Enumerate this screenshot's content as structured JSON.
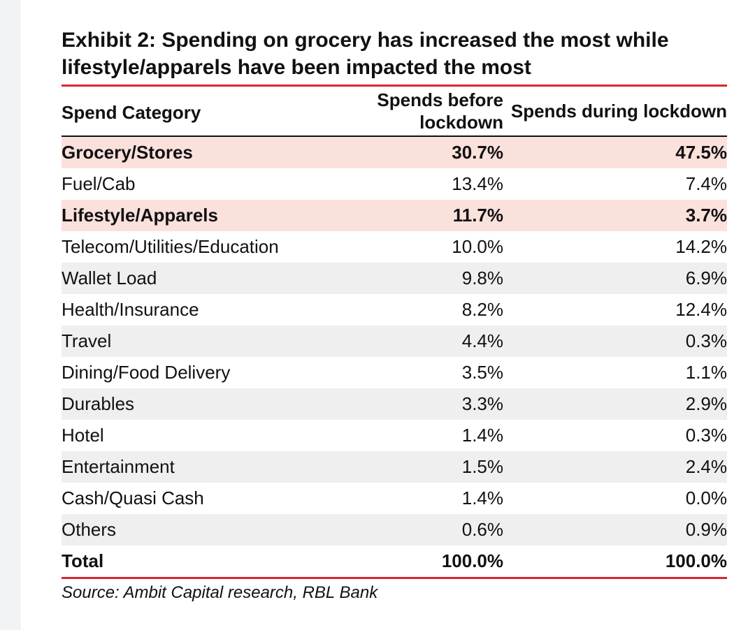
{
  "chart_data": {
    "type": "table",
    "title": "Exhibit 2: Spending on grocery has increased the most while lifestyle/apparels have been impacted the most",
    "columns": [
      "Spend Category",
      "Spends before lockdown",
      "Spends during lockdown"
    ],
    "rows": [
      {
        "category": "Grocery/Stores",
        "before": "30.7%",
        "during": "47.5%",
        "highlight": true
      },
      {
        "category": "Fuel/Cab",
        "before": "13.4%",
        "during": "7.4%",
        "highlight": false
      },
      {
        "category": "Lifestyle/Apparels",
        "before": "11.7%",
        "during": "3.7%",
        "highlight": true
      },
      {
        "category": "Telecom/Utilities/Education",
        "before": "10.0%",
        "during": "14.2%",
        "highlight": false
      },
      {
        "category": "Wallet Load",
        "before": "9.8%",
        "during": "6.9%",
        "highlight": false
      },
      {
        "category": "Health/Insurance",
        "before": "8.2%",
        "during": "12.4%",
        "highlight": false
      },
      {
        "category": "Travel",
        "before": "4.4%",
        "during": "0.3%",
        "highlight": false
      },
      {
        "category": "Dining/Food Delivery",
        "before": "3.5%",
        "during": "1.1%",
        "highlight": false
      },
      {
        "category": "Durables",
        "before": "3.3%",
        "during": "2.9%",
        "highlight": false
      },
      {
        "category": "Hotel",
        "before": "1.4%",
        "during": "0.3%",
        "highlight": false
      },
      {
        "category": "Entertainment",
        "before": "1.5%",
        "during": "2.4%",
        "highlight": false
      },
      {
        "category": "Cash/Quasi Cash",
        "before": "1.4%",
        "during": "0.0%",
        "highlight": false
      },
      {
        "category": "Others",
        "before": "0.6%",
        "during": "0.9%",
        "highlight": false
      }
    ],
    "total": {
      "category": "Total",
      "before": "100.0%",
      "during": "100.0%"
    },
    "source": "Source: Ambit Capital research, RBL Bank",
    "colors": {
      "rule": "#d7282f",
      "highlight_row": "#fbe1dc",
      "band_row": "#efefef"
    }
  }
}
